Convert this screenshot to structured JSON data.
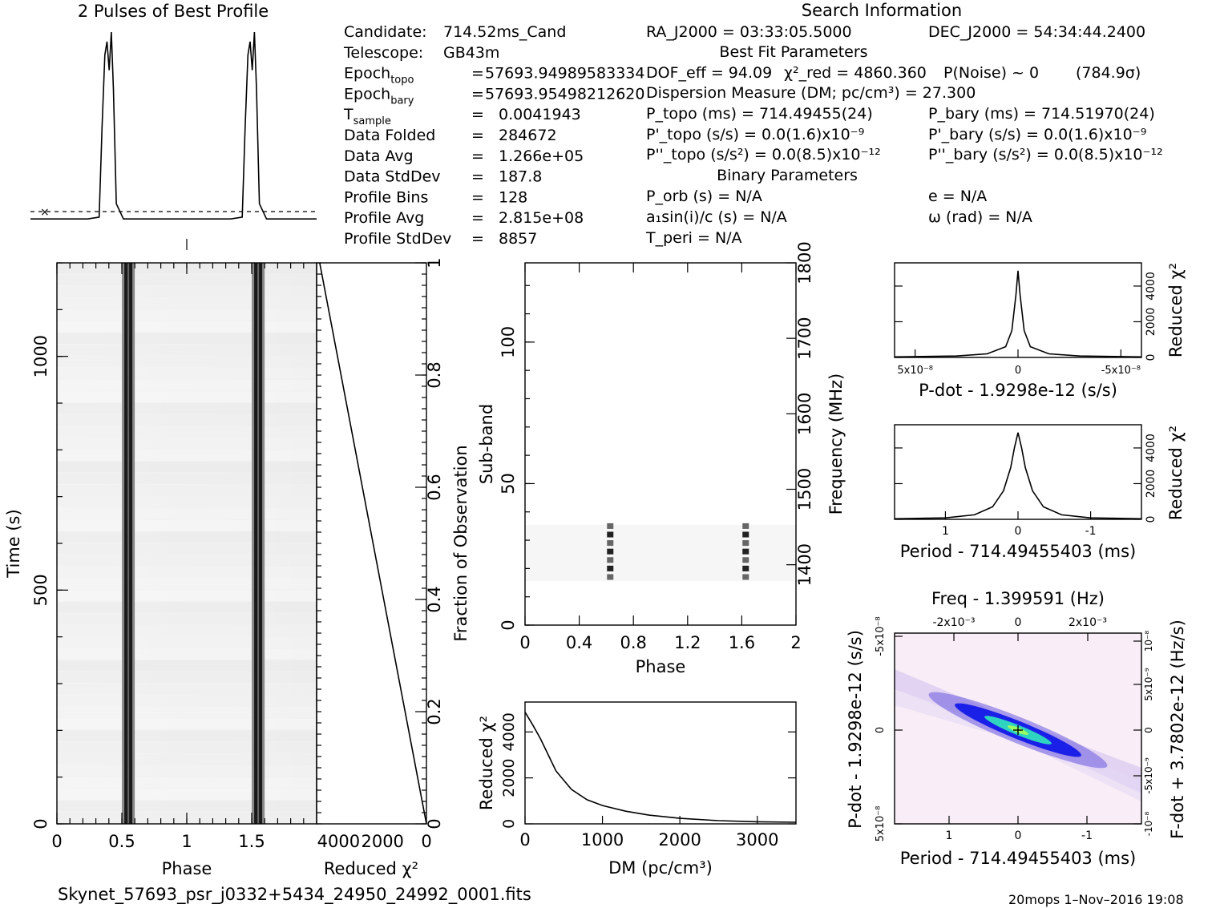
{
  "titles": {
    "profile": "2 Pulses of Best Profile",
    "search_info": "Search Information",
    "best_fit": "Best Fit Parameters",
    "binary": "Binary Parameters"
  },
  "info_left": [
    [
      "Candidate:",
      "",
      "714.52ms_Cand"
    ],
    [
      "Telescope:",
      "",
      "GB43m"
    ],
    [
      "Epoch_topo",
      "=",
      "57693.94989583334"
    ],
    [
      "Epoch_bary",
      "=",
      "57693.95498212620"
    ],
    [
      "T_sample",
      "=",
      "0.0041943"
    ],
    [
      "Data Folded",
      "=",
      "284672"
    ],
    [
      "Data Avg",
      "=",
      "1.266e+05"
    ],
    [
      "Data StdDev",
      "=",
      "187.8"
    ],
    [
      "Profile Bins",
      "=",
      "128"
    ],
    [
      "Profile Avg",
      "=",
      "2.815e+08"
    ],
    [
      "Profile StdDev",
      "=",
      "8857"
    ]
  ],
  "info_right": {
    "ra": "RA_J2000 = 03:33:05.5000",
    "dec": "DEC_J2000 = 54:34:44.2400",
    "dof": "DOF_eff = 94.09",
    "chi2": "χ²_red = 4860.360",
    "pnoise": "P(Noise) ~ 0",
    "sigma": "(784.9σ)",
    "dm": "Dispersion Measure (DM; pc/cm³) = 27.300",
    "ptopo": "P_topo (ms) = 714.49455(24)",
    "pbary": "P_bary (ms) = 714.51970(24)",
    "pdtopo": "P'_topo (s/s) = 0.0(1.6)x10⁻⁹",
    "pdbary": "P'_bary (s/s) = 0.0(1.6)x10⁻⁹",
    "pddtopo": "P''_topo (s/s²) = 0.0(8.5)x10⁻¹²",
    "pddbary": "P''_bary (s/s²) = 0.0(8.5)x10⁻¹²",
    "porb": "P_orb (s) = N/A",
    "e": "e = N/A",
    "a1": "a₁sin(i)/c (s) = N/A",
    "omega": "ω (rad) = N/A",
    "tperi": "T_peri = N/A"
  },
  "footer": {
    "filename": "Skynet_57693_psr_j0332+5434_24950_24992_0001.fits",
    "stamp": "20mops   1–Nov–2016 19:08"
  },
  "chart_data": [
    {
      "type": "line",
      "panel": "profile",
      "title": "2 Pulses of Best Profile",
      "x": [
        0,
        0.4,
        0.48,
        0.5,
        0.52,
        0.535,
        0.55,
        0.565,
        0.58,
        0.6,
        0.65,
        0.8,
        1.0,
        1.4,
        1.48,
        1.5,
        1.52,
        1.535,
        1.55,
        1.565,
        1.58,
        1.6,
        1.65,
        2.0
      ],
      "values": [
        0.02,
        0.02,
        0.03,
        0.5,
        0.88,
        0.95,
        0.8,
        1.0,
        0.7,
        0.1,
        0.02,
        0.02,
        0.02,
        0.02,
        0.03,
        0.5,
        0.88,
        0.95,
        0.8,
        1.0,
        0.7,
        0.1,
        0.02,
        0.02
      ],
      "xlim": [
        0,
        2
      ]
    },
    {
      "type": "heatmap",
      "panel": "time-phase",
      "xlabel": "Phase",
      "ylabel": "Time (s)",
      "xticks": [
        "0",
        "0.5",
        "1",
        "1.5"
      ],
      "yticks": [
        "0",
        "500",
        "1000"
      ],
      "xlim": [
        0,
        2
      ],
      "ylim": [
        0,
        1200
      ],
      "pulse_phases": [
        0.55,
        1.55
      ]
    },
    {
      "type": "line",
      "panel": "reduced-chi2-vs-fraction",
      "xlabel": "Reduced χ²",
      "ylabel": "Fraction of Observation",
      "xticks": [
        "4000",
        "2000",
        "0"
      ],
      "yticks": [
        "0",
        "0.2",
        "0.4",
        "0.6",
        "0.8",
        "1"
      ],
      "xlim": [
        5000,
        0
      ],
      "ylim": [
        0,
        1
      ],
      "x": [
        0,
        4860
      ],
      "y": [
        0,
        1
      ]
    },
    {
      "type": "heatmap",
      "panel": "subband-phase",
      "xlabel": "Phase",
      "ylabel": "Sub-band",
      "ylabel2": "Frequency (MHz)",
      "xticks": [
        "0",
        "0.4",
        "0.8",
        "1.2",
        "1.6",
        "2"
      ],
      "yticks": [
        "0",
        "50",
        "100"
      ],
      "y2ticks": [
        "1400",
        "1500",
        "1600",
        "1700",
        "1800"
      ],
      "xlim": [
        0,
        2
      ],
      "ylim": [
        0,
        128
      ],
      "pulse_phases": [
        0.54,
        1.54
      ],
      "signal_subbands": [
        16,
        34
      ]
    },
    {
      "type": "line",
      "panel": "dm-curve",
      "xlabel": "DM (pc/cm³)",
      "ylabel": "Reduced χ²",
      "xticks": [
        "0",
        "1000",
        "2000",
        "3000"
      ],
      "yticks": [
        "0",
        "2000",
        "4000"
      ],
      "xlim": [
        0,
        3500
      ],
      "ylim": [
        0,
        5300
      ],
      "x": [
        0,
        100,
        200,
        300,
        400,
        600,
        800,
        1000,
        1300,
        1600,
        2000,
        2500,
        3000,
        3500
      ],
      "y": [
        4860,
        4300,
        3700,
        3000,
        2300,
        1500,
        1050,
        800,
        550,
        380,
        240,
        140,
        90,
        70
      ]
    },
    {
      "type": "line",
      "panel": "pdot-curve",
      "xlabel": "P-dot - 1.9298e-12 (s/s)",
      "ylabel": "Reduced χ²",
      "xticks": [
        "5x10⁻⁸",
        "0",
        "-5x10⁻⁸"
      ],
      "yticks": [
        "0",
        "2000",
        "4000"
      ],
      "xlim": [
        6e-08,
        -6e-08
      ],
      "ylim": [
        0,
        5300
      ],
      "x": [
        6e-08,
        3e-08,
        1.5e-08,
        6e-09,
        3e-09,
        1e-09,
        0,
        -1e-09,
        -3e-09,
        -6e-09,
        -1.5e-08,
        -3e-08,
        -6e-08
      ],
      "y": [
        30,
        80,
        200,
        600,
        1500,
        3500,
        4860,
        3500,
        1500,
        600,
        200,
        80,
        30
      ]
    },
    {
      "type": "line",
      "panel": "period-curve",
      "xlabel": "Period - 714.49455403 (ms)",
      "ylabel": "Reduced χ²",
      "xticks": [
        "1",
        "0",
        "-1"
      ],
      "yticks": [
        "0",
        "2000",
        "4000"
      ],
      "xlim": [
        1.7,
        -1.7
      ],
      "ylim": [
        0,
        5300
      ],
      "x": [
        1.7,
        1.0,
        0.6,
        0.35,
        0.2,
        0.1,
        0.05,
        0,
        -0.05,
        -0.1,
        -0.2,
        -0.35,
        -0.6,
        -1.0,
        -1.7
      ],
      "y": [
        30,
        80,
        250,
        700,
        1600,
        2900,
        4000,
        4860,
        4000,
        2900,
        1600,
        700,
        250,
        80,
        30
      ]
    },
    {
      "type": "heatmap",
      "panel": "period-pdot-plane",
      "xlabel": "Period - 714.49455403 (ms)",
      "ylabel": "P-dot - 1.9298e-12 (s/s)",
      "top_label": "Freq - 1.399591 (Hz)",
      "right_label": "F-dot + 3.7802e-12 (Hz/s)",
      "xticks": [
        "1",
        "0",
        "-1"
      ],
      "yticks": [
        "5x10⁻⁸",
        "0",
        "-5x10⁻⁸"
      ],
      "top_ticks": [
        "-2x10⁻³",
        "0",
        "2x10⁻³"
      ],
      "right_ticks": [
        "-10⁻⁸",
        "-5x10⁻⁹",
        "0",
        "5x10⁻⁹",
        "10⁻⁸"
      ]
    }
  ]
}
